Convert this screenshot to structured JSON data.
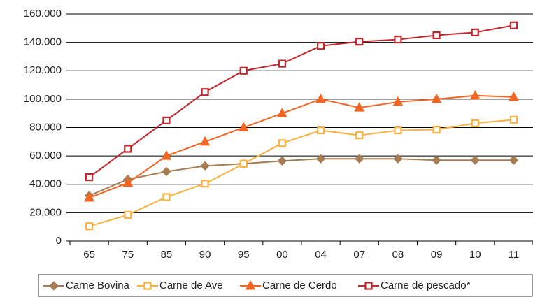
{
  "chart_data": {
    "type": "line",
    "categories": [
      "65",
      "75",
      "85",
      "90",
      "95",
      "00",
      "04",
      "07",
      "08",
      "09",
      "10",
      "11"
    ],
    "series": [
      {
        "name": "Carne Bovina",
        "color": "#a67c52",
        "marker": "diamond",
        "values": [
          32000,
          43500,
          49000,
          53000,
          54500,
          56500,
          58000,
          58000,
          58000,
          57000,
          57000,
          57000
        ]
      },
      {
        "name": "Carne de Ave",
        "color": "#fbb040",
        "marker": "square",
        "values": [
          10500,
          18500,
          31000,
          40500,
          54500,
          69000,
          78000,
          74500,
          78000,
          78500,
          83000,
          85500
        ]
      },
      {
        "name": "Carne de Cerdo",
        "color": "#f26522",
        "marker": "triangle",
        "values": [
          30500,
          41000,
          60000,
          70000,
          80000,
          90000,
          100000,
          94000,
          98000,
          100000,
          102500,
          101500
        ]
      },
      {
        "name": "Carne de pescado*",
        "color": "#c1272d",
        "marker": "square",
        "values": [
          45000,
          65000,
          85000,
          105000,
          120000,
          125000,
          137500,
          140500,
          142000,
          145000,
          147000,
          152000
        ]
      }
    ],
    "ylim": [
      0,
      160000
    ],
    "yticks": [
      0,
      {
        "value": 20000,
        "label": "20.000"
      },
      {
        "value": 40000,
        "label": "40.000"
      },
      {
        "value": 60000,
        "label": "60.000"
      },
      {
        "value": 80000,
        "label": "80.000"
      },
      {
        "value": 100000,
        "label": "100.000"
      },
      {
        "value": 120000,
        "label": "120.000"
      },
      {
        "value": 140000,
        "label": "140.000"
      },
      {
        "value": 160000,
        "label": "160.000"
      }
    ],
    "grid": true,
    "legend": "bottom"
  }
}
